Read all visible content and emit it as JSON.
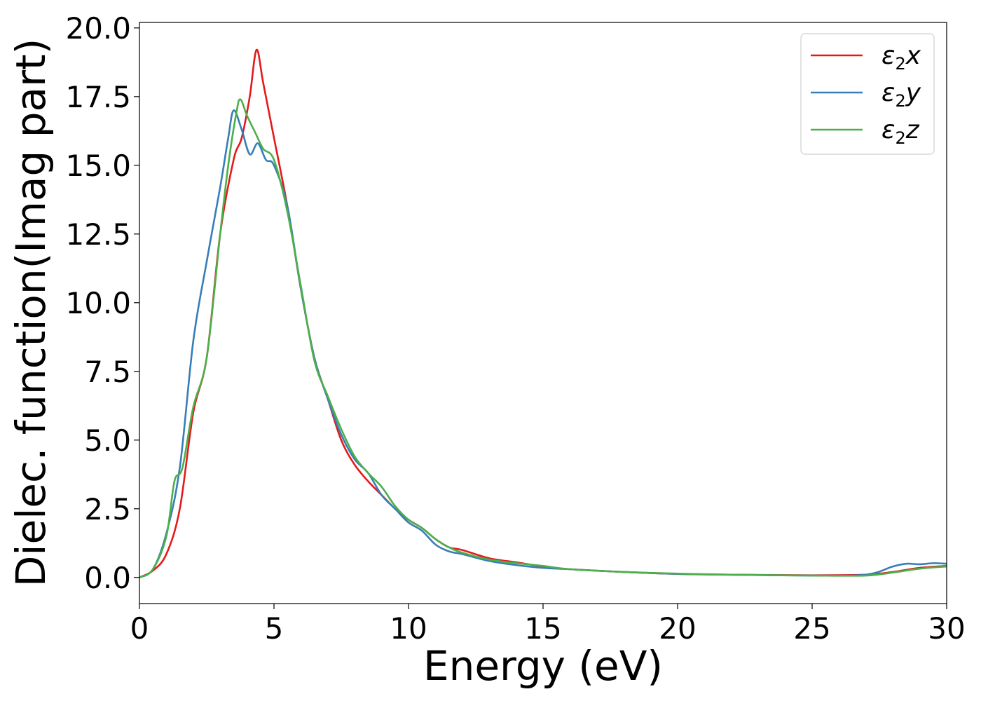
{
  "chart_data": {
    "type": "line",
    "title": "",
    "xlabel": "Energy (eV)",
    "ylabel": "Dielec. function(Imag part)",
    "xlim": [
      0,
      30
    ],
    "ylim": [
      -0.95,
      20.2
    ],
    "xticks": [
      0,
      5,
      10,
      15,
      20,
      25,
      30
    ],
    "xtick_labels": [
      "0",
      "5",
      "10",
      "15",
      "20",
      "25",
      "30"
    ],
    "yticks": [
      0.0,
      2.5,
      5.0,
      7.5,
      10.0,
      12.5,
      15.0,
      17.5,
      20.0
    ],
    "ytick_labels": [
      "0.0",
      "2.5",
      "5.0",
      "7.5",
      "10.0",
      "12.5",
      "15.0",
      "17.5",
      "20.0"
    ],
    "grid": false,
    "legend_position": "top-right",
    "series": [
      {
        "name": "ε2x",
        "legend_base": "ε",
        "legend_sub": "2",
        "legend_tail": "x",
        "color": "#e41a1c",
        "x": [
          0,
          0.5,
          1.0,
          1.5,
          2.0,
          2.5,
          3.0,
          3.5,
          3.8,
          4.1,
          4.35,
          4.6,
          5.0,
          5.5,
          6.0,
          6.5,
          7.0,
          7.5,
          8.0,
          8.5,
          9.0,
          9.5,
          10.0,
          10.5,
          11.0,
          11.5,
          12.0,
          13.0,
          14.0,
          15.0,
          16.0,
          18.0,
          20.0,
          22.0,
          25.0,
          27.0,
          28.0,
          29.0,
          30.0
        ],
        "y": [
          0.0,
          0.25,
          0.85,
          2.5,
          6.0,
          8.0,
          12.5,
          15.2,
          16.0,
          17.5,
          19.2,
          18.0,
          16.0,
          13.5,
          10.5,
          8.0,
          6.5,
          5.0,
          4.1,
          3.5,
          3.0,
          2.5,
          2.1,
          1.8,
          1.4,
          1.1,
          1.0,
          0.7,
          0.55,
          0.4,
          0.3,
          0.2,
          0.13,
          0.1,
          0.08,
          0.1,
          0.2,
          0.35,
          0.42
        ]
      },
      {
        "name": "ε2y",
        "legend_base": "ε",
        "legend_sub": "2",
        "legend_tail": "y",
        "color": "#377eb8",
        "x": [
          0,
          0.5,
          1.0,
          1.5,
          2.0,
          2.5,
          3.0,
          3.3,
          3.5,
          3.8,
          4.1,
          4.4,
          4.7,
          5.0,
          5.5,
          6.0,
          6.5,
          7.0,
          7.5,
          8.0,
          8.5,
          9.0,
          9.5,
          10.0,
          10.5,
          11.0,
          11.5,
          12.0,
          13.0,
          14.0,
          15.0,
          16.0,
          18.0,
          20.0,
          22.0,
          25.0,
          27.0,
          28.0,
          28.5,
          29.0,
          29.5,
          30.0
        ],
        "y": [
          0.0,
          0.3,
          1.6,
          4.0,
          8.6,
          11.5,
          14.2,
          16.0,
          17.0,
          16.3,
          15.4,
          15.8,
          15.2,
          15.0,
          13.5,
          10.5,
          8.0,
          6.5,
          5.2,
          4.3,
          3.8,
          3.0,
          2.5,
          2.0,
          1.7,
          1.2,
          0.95,
          0.85,
          0.6,
          0.45,
          0.35,
          0.3,
          0.2,
          0.13,
          0.1,
          0.07,
          0.1,
          0.4,
          0.5,
          0.48,
          0.52,
          0.5
        ]
      },
      {
        "name": "ε2z",
        "legend_base": "ε",
        "legend_sub": "2",
        "legend_tail": "z",
        "color": "#4daf4a",
        "x": [
          0,
          0.5,
          1.0,
          1.3,
          1.6,
          2.0,
          2.5,
          3.0,
          3.3,
          3.6,
          3.75,
          4.0,
          4.3,
          4.6,
          5.0,
          5.5,
          6.0,
          6.5,
          7.0,
          7.5,
          8.0,
          8.5,
          9.0,
          9.5,
          10.0,
          10.5,
          11.0,
          11.5,
          12.0,
          13.0,
          14.0,
          15.0,
          16.0,
          18.0,
          20.0,
          22.0,
          25.0,
          27.0,
          28.0,
          29.0,
          30.0
        ],
        "y": [
          0.0,
          0.3,
          1.5,
          3.5,
          4.0,
          6.2,
          8.0,
          12.5,
          15.0,
          16.9,
          17.4,
          16.8,
          16.2,
          15.6,
          15.2,
          13.3,
          10.6,
          7.9,
          6.6,
          5.4,
          4.4,
          3.8,
          3.3,
          2.6,
          2.1,
          1.8,
          1.4,
          1.1,
          0.9,
          0.65,
          0.52,
          0.42,
          0.3,
          0.2,
          0.14,
          0.1,
          0.07,
          0.07,
          0.18,
          0.32,
          0.4
        ]
      }
    ]
  }
}
